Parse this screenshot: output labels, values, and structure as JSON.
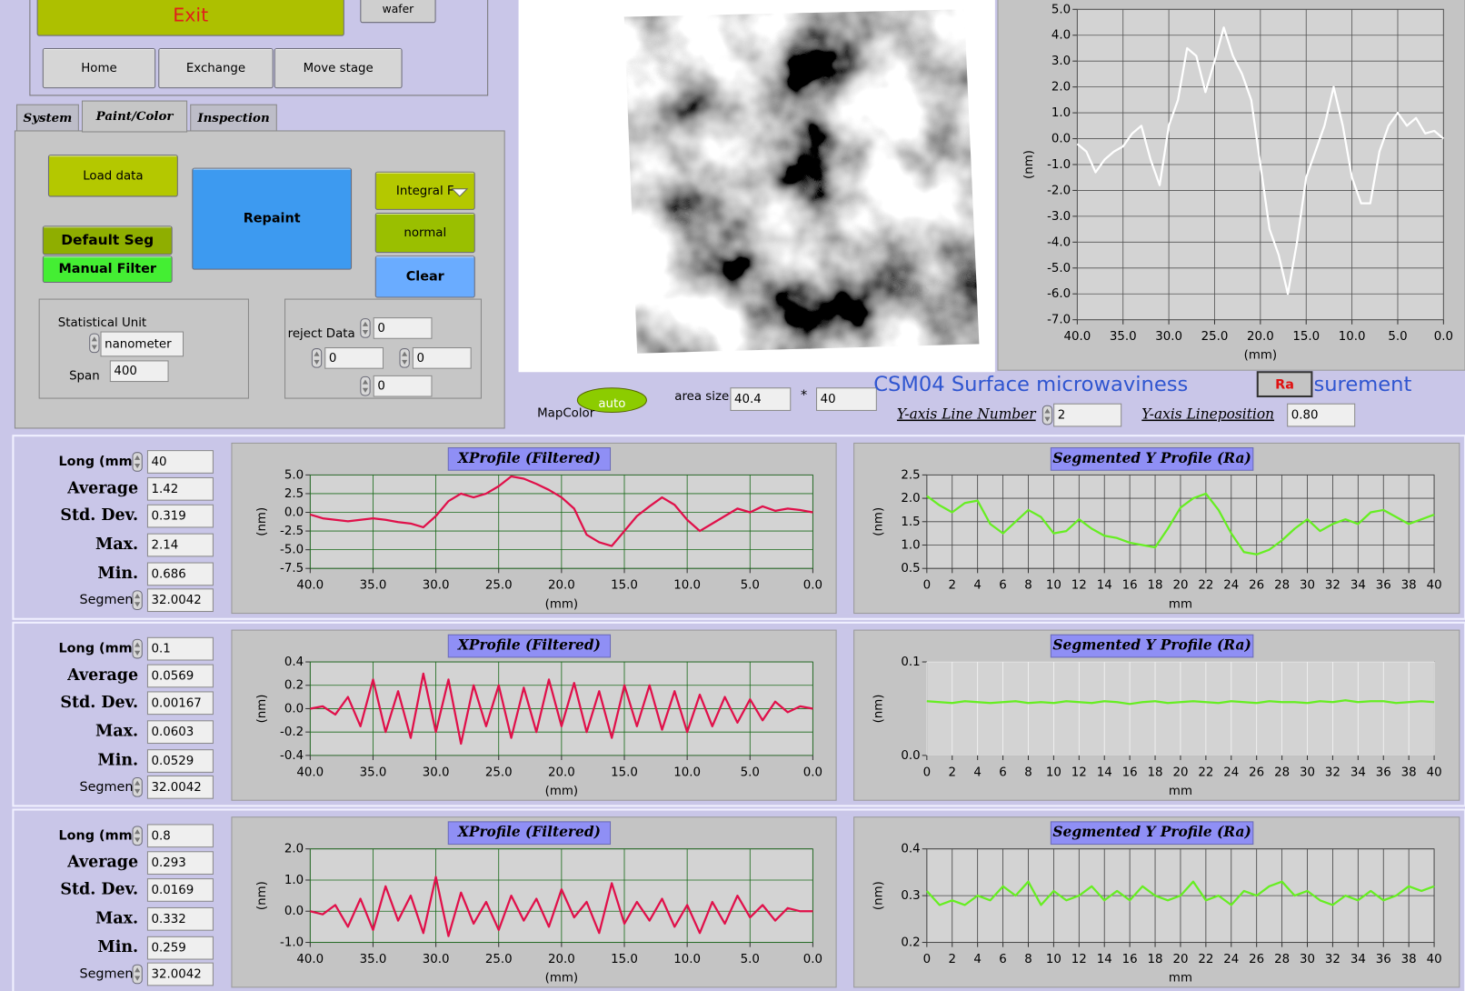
{
  "ui": {
    "exit": "Exit",
    "wafer": "wafer",
    "home": "Home",
    "exchange": "Exchange",
    "move_stage": "Move stage",
    "tabs": [
      "System",
      "Paint/Color",
      "Inspection"
    ],
    "load_data": "Load data",
    "repaint": "Repaint",
    "integral": "Integral F",
    "normal": "normal",
    "clear": "Clear",
    "default_seg": "Default Seg",
    "manual_filter": "Manual Filter",
    "statistical_unit": "Statistical Unit",
    "unit_value": "nanometer",
    "span_label": "Span",
    "span_value": "400",
    "reject_data": "reject Data",
    "reject_values": [
      "0",
      "0",
      "0",
      "0"
    ],
    "map_color": "MapColor",
    "auto": "auto",
    "area_size": "area size",
    "area_x": "40.4",
    "area_sep": "*",
    "area_y": "40",
    "title": "CSM04 Surface microwaviness",
    "ra": "Ra",
    "title_tail": "surement",
    "y_line_number_label": "Y-axis Line Number",
    "y_line_number": "2",
    "y_lineposition_label": "Y-axis Lineposition",
    "y_lineposition": "0.80"
  },
  "rows": [
    {
      "long_label": "Long (mm)",
      "long": "40",
      "average_label": "Average",
      "average": "1.42",
      "std_label": "Std. Dev.",
      "std": "0.319",
      "max_label": "Max.",
      "max": "2.14",
      "min_label": "Min.",
      "min": "0.686",
      "segment_label": "Segment",
      "segment": "32.0042"
    },
    {
      "long_label": "Long (mm)",
      "long": "0.1",
      "average_label": "Average",
      "average": "0.0569",
      "std_label": "Std. Dev.",
      "std": "0.00167",
      "max_label": "Max.",
      "max": "0.0603",
      "min_label": "Min.",
      "min": "0.0529",
      "segment_label": "Segment",
      "segment": "32.0042"
    },
    {
      "long_label": "Long (mm)",
      "long": "0.8",
      "average_label": "Average",
      "average": "0.293",
      "std_label": "Std. Dev.",
      "std": "0.0169",
      "max_label": "Max.",
      "max": "0.332",
      "min_label": "Min.",
      "min": "0.259",
      "segment_label": "Segment",
      "segment": "32.0042"
    }
  ],
  "chart_data": [
    {
      "type": "line",
      "x_label": "(mm)",
      "y_label": "(nm)",
      "color": "#ffffff",
      "grid": true,
      "grid_color": "#555555",
      "x": [
        40,
        39,
        38,
        37,
        36,
        35,
        34,
        33,
        32,
        31,
        30,
        29,
        28,
        27,
        26,
        25,
        24,
        23,
        22,
        21,
        20,
        19,
        18,
        17,
        16,
        15,
        14,
        13,
        12,
        11,
        10,
        9,
        8,
        7,
        6,
        5,
        4,
        3,
        2,
        1,
        0
      ],
      "values": [
        -0.2,
        -0.5,
        -1.3,
        -0.8,
        -0.5,
        -0.3,
        0.2,
        0.5,
        -0.8,
        -1.8,
        0.5,
        1.5,
        3.5,
        3.2,
        1.8,
        3.0,
        4.3,
        3.2,
        2.5,
        1.5,
        -1.0,
        -3.5,
        -4.5,
        -6.0,
        -4.0,
        -1.5,
        -0.5,
        0.5,
        2.0,
        0.5,
        -1.5,
        -2.5,
        -2.5,
        -0.5,
        0.5,
        1.0,
        0.5,
        0.8,
        0.2,
        0.3,
        0.0
      ],
      "xlim": [
        40,
        0
      ],
      "xticks": [
        {
          "value": 40,
          "label": "40.0"
        },
        {
          "value": 35,
          "label": "35.0"
        },
        {
          "value": 30,
          "label": "30.0"
        },
        {
          "value": 25,
          "label": "25.0"
        },
        {
          "value": 20,
          "label": "20.0"
        },
        {
          "value": 15,
          "label": "15.0"
        },
        {
          "value": 10,
          "label": "10.0"
        },
        {
          "value": 5,
          "label": "5.0"
        },
        {
          "value": 0,
          "label": "0.0"
        }
      ],
      "ylim": [
        -7,
        5
      ],
      "yticks": [
        {
          "value": 5,
          "label": "5.0"
        },
        {
          "value": 4,
          "label": "4.0"
        },
        {
          "value": 3,
          "label": "3.0"
        },
        {
          "value": 2,
          "label": "2.0"
        },
        {
          "value": 1,
          "label": "1.0"
        },
        {
          "value": 0,
          "label": "0.0"
        },
        {
          "value": -1,
          "label": "-1.0"
        },
        {
          "value": -2,
          "label": "-2.0"
        },
        {
          "value": -3,
          "label": "-3.0"
        },
        {
          "value": -4,
          "label": "-4.0"
        },
        {
          "value": -5,
          "label": "-5.0"
        },
        {
          "value": -6,
          "label": "-6.0"
        },
        {
          "value": -7,
          "label": "-7.0"
        }
      ]
    },
    {
      "type": "line",
      "title": "XProfile (Filtered)",
      "x_label": "(mm)",
      "y_label": "(nm)",
      "color": "#e0104a",
      "grid": true,
      "grid_color": "#1a6a1a",
      "x": [
        40,
        39,
        38,
        37,
        36,
        35,
        34,
        33,
        32,
        31,
        30,
        29,
        28,
        27,
        26,
        25,
        24,
        23,
        22,
        21,
        20,
        19,
        18,
        17,
        16,
        15,
        14,
        13,
        12,
        11,
        10,
        9,
        8,
        7,
        6,
        5,
        4,
        3,
        2,
        1,
        0
      ],
      "values": [
        -0.3,
        -0.8,
        -1.0,
        -1.2,
        -1.0,
        -0.8,
        -1.0,
        -1.3,
        -1.5,
        -2.0,
        -0.5,
        1.5,
        2.5,
        2.0,
        2.5,
        3.5,
        4.8,
        4.5,
        3.8,
        3.0,
        2.0,
        0.5,
        -3.0,
        -4.0,
        -4.5,
        -2.5,
        -0.5,
        0.8,
        2.0,
        1.0,
        -1.0,
        -2.5,
        -1.5,
        -0.5,
        0.5,
        0.0,
        0.8,
        0.2,
        0.5,
        0.3,
        0.0
      ],
      "xlim": [
        40,
        0
      ],
      "xticks": [
        {
          "value": 40,
          "label": "40.0"
        },
        {
          "value": 35,
          "label": "35.0"
        },
        {
          "value": 30,
          "label": "30.0"
        },
        {
          "value": 25,
          "label": "25.0"
        },
        {
          "value": 20,
          "label": "20.0"
        },
        {
          "value": 15,
          "label": "15.0"
        },
        {
          "value": 10,
          "label": "10.0"
        },
        {
          "value": 5,
          "label": "5.0"
        },
        {
          "value": 0,
          "label": "0.0"
        }
      ],
      "ylim": [
        -7.5,
        5
      ],
      "yticks": [
        {
          "value": 5,
          "label": "5.0"
        },
        2.5,
        {
          "value": 0,
          "label": "0.0"
        },
        -2.5,
        {
          "value": -5,
          "label": "-5.0"
        },
        -7.5
      ]
    },
    {
      "type": "line",
      "title": "XProfile (Filtered)",
      "x_label": "(mm)",
      "y_label": "(nm)",
      "color": "#e0104a",
      "grid": true,
      "grid_color": "#1a6a1a",
      "x": [
        40,
        39,
        38,
        37,
        36,
        35,
        34,
        33,
        32,
        31,
        30,
        29,
        28,
        27,
        26,
        25,
        24,
        23,
        22,
        21,
        20,
        19,
        18,
        17,
        16,
        15,
        14,
        13,
        12,
        11,
        10,
        9,
        8,
        7,
        6,
        5,
        4,
        3,
        2,
        1,
        0
      ],
      "values": [
        0.0,
        0.02,
        -0.05,
        0.1,
        -0.15,
        0.25,
        -0.2,
        0.15,
        -0.25,
        0.3,
        -0.2,
        0.25,
        -0.3,
        0.2,
        -0.15,
        0.2,
        -0.25,
        0.18,
        -0.2,
        0.25,
        -0.15,
        0.22,
        -0.2,
        0.15,
        -0.25,
        0.2,
        -0.15,
        0.2,
        -0.18,
        0.15,
        -0.2,
        0.12,
        -0.15,
        0.1,
        -0.12,
        0.08,
        -0.1,
        0.06,
        -0.03,
        0.02,
        0.0
      ],
      "xlim": [
        40,
        0
      ],
      "xticks": [
        {
          "value": 40,
          "label": "40.0"
        },
        {
          "value": 35,
          "label": "35.0"
        },
        {
          "value": 30,
          "label": "30.0"
        },
        {
          "value": 25,
          "label": "25.0"
        },
        {
          "value": 20,
          "label": "20.0"
        },
        {
          "value": 15,
          "label": "15.0"
        },
        {
          "value": 10,
          "label": "10.0"
        },
        {
          "value": 5,
          "label": "5.0"
        },
        {
          "value": 0,
          "label": "0.0"
        }
      ],
      "ylim": [
        -0.4,
        0.4
      ],
      "yticks": [
        0.4,
        0.2,
        {
          "value": 0,
          "label": "0.0"
        },
        -0.2,
        -0.4
      ]
    },
    {
      "type": "line",
      "title": "XProfile (Filtered)",
      "x_label": "(mm)",
      "y_label": "(nm)",
      "color": "#e0104a",
      "grid": true,
      "grid_color": "#1a6a1a",
      "x": [
        40,
        39,
        38,
        37,
        36,
        35,
        34,
        33,
        32,
        31,
        30,
        29,
        28,
        27,
        26,
        25,
        24,
        23,
        22,
        21,
        20,
        19,
        18,
        17,
        16,
        15,
        14,
        13,
        12,
        11,
        10,
        9,
        8,
        7,
        6,
        5,
        4,
        3,
        2,
        1,
        0
      ],
      "values": [
        0.0,
        -0.1,
        0.2,
        -0.5,
        0.4,
        -0.6,
        0.8,
        -0.3,
        0.5,
        -0.7,
        1.1,
        -0.8,
        0.6,
        -0.4,
        0.3,
        -0.6,
        0.5,
        -0.3,
        0.4,
        -0.5,
        0.7,
        -0.2,
        0.3,
        -0.7,
        0.9,
        -0.4,
        0.3,
        -0.3,
        0.4,
        -0.5,
        0.2,
        -0.7,
        0.3,
        -0.4,
        0.5,
        -0.2,
        0.2,
        -0.3,
        0.1,
        0.0,
        0.0
      ],
      "xlim": [
        40,
        0
      ],
      "xticks": [
        {
          "value": 40,
          "label": "40.0"
        },
        {
          "value": 35,
          "label": "35.0"
        },
        {
          "value": 30,
          "label": "30.0"
        },
        {
          "value": 25,
          "label": "25.0"
        },
        {
          "value": 20,
          "label": "20.0"
        },
        {
          "value": 15,
          "label": "15.0"
        },
        {
          "value": 10,
          "label": "10.0"
        },
        {
          "value": 5,
          "label": "5.0"
        },
        {
          "value": 0,
          "label": "0.0"
        }
      ],
      "ylim": [
        -1,
        2
      ],
      "yticks": [
        {
          "value": 2,
          "label": "2.0"
        },
        {
          "value": 1,
          "label": "1.0"
        },
        {
          "value": 0,
          "label": "0.0"
        },
        {
          "value": -1,
          "label": "-1.0"
        }
      ]
    },
    {
      "type": "line",
      "title": "Segmented Y Profile (Ra)",
      "x_label": "mm",
      "y_label": "(nm)",
      "color": "#66ee22",
      "grid": true,
      "grid_color": "#444444",
      "x": [
        0,
        1,
        2,
        3,
        4,
        5,
        6,
        7,
        8,
        9,
        10,
        11,
        12,
        13,
        14,
        15,
        16,
        17,
        18,
        19,
        20,
        21,
        22,
        23,
        24,
        25,
        26,
        27,
        28,
        29,
        30,
        31,
        32,
        33,
        34,
        35,
        36,
        37,
        38,
        39,
        40
      ],
      "values": [
        2.05,
        1.85,
        1.7,
        1.9,
        1.95,
        1.45,
        1.25,
        1.5,
        1.75,
        1.6,
        1.25,
        1.3,
        1.55,
        1.35,
        1.2,
        1.15,
        1.05,
        1.0,
        0.95,
        1.35,
        1.8,
        2.0,
        2.1,
        1.75,
        1.25,
        0.85,
        0.8,
        0.9,
        1.1,
        1.35,
        1.55,
        1.3,
        1.45,
        1.55,
        1.45,
        1.7,
        1.75,
        1.6,
        1.45,
        1.55,
        1.65
      ],
      "xlim": [
        0,
        40
      ],
      "xticks": [
        0,
        2,
        4,
        6,
        8,
        10,
        12,
        14,
        16,
        18,
        20,
        22,
        24,
        26,
        28,
        30,
        32,
        34,
        36,
        38,
        40
      ],
      "ylim": [
        0.5,
        2.5
      ],
      "yticks": [
        2.5,
        {
          "value": 2,
          "label": "2.0"
        },
        1.5,
        {
          "value": 1,
          "label": "1.0"
        },
        0.5
      ]
    },
    {
      "type": "line",
      "title": "Segmented Y Profile (Ra)",
      "x_label": "mm",
      "y_label": "(nm)",
      "color": "#66ee22",
      "grid": true,
      "grid_color": "#f4f4f4",
      "x": [
        0,
        1,
        2,
        3,
        4,
        5,
        6,
        7,
        8,
        9,
        10,
        11,
        12,
        13,
        14,
        15,
        16,
        17,
        18,
        19,
        20,
        21,
        22,
        23,
        24,
        25,
        26,
        27,
        28,
        29,
        30,
        31,
        32,
        33,
        34,
        35,
        36,
        37,
        38,
        39,
        40
      ],
      "values": [
        0.058,
        0.057,
        0.056,
        0.058,
        0.057,
        0.056,
        0.057,
        0.058,
        0.056,
        0.057,
        0.056,
        0.058,
        0.057,
        0.056,
        0.058,
        0.057,
        0.055,
        0.057,
        0.058,
        0.056,
        0.057,
        0.058,
        0.057,
        0.056,
        0.058,
        0.057,
        0.056,
        0.058,
        0.057,
        0.057,
        0.056,
        0.058,
        0.057,
        0.059,
        0.057,
        0.058,
        0.058,
        0.056,
        0.057,
        0.058,
        0.057
      ],
      "xlim": [
        0,
        40
      ],
      "xticks": [
        0,
        2,
        4,
        6,
        8,
        10,
        12,
        14,
        16,
        18,
        20,
        22,
        24,
        26,
        28,
        30,
        32,
        34,
        36,
        38,
        40
      ],
      "ylim": [
        0,
        0.1
      ],
      "yticks": [
        0.1,
        {
          "value": 0,
          "label": "0.0"
        }
      ]
    },
    {
      "type": "line",
      "title": "Segmented Y Profile (Ra)",
      "x_label": "mm",
      "y_label": "(nm)",
      "color": "#66ee22",
      "grid": true,
      "grid_color": "#444444",
      "x": [
        0,
        1,
        2,
        3,
        4,
        5,
        6,
        7,
        8,
        9,
        10,
        11,
        12,
        13,
        14,
        15,
        16,
        17,
        18,
        19,
        20,
        21,
        22,
        23,
        24,
        25,
        26,
        27,
        28,
        29,
        30,
        31,
        32,
        33,
        34,
        35,
        36,
        37,
        38,
        39,
        40
      ],
      "values": [
        0.31,
        0.28,
        0.29,
        0.28,
        0.3,
        0.29,
        0.32,
        0.3,
        0.33,
        0.28,
        0.31,
        0.29,
        0.3,
        0.32,
        0.29,
        0.31,
        0.29,
        0.32,
        0.3,
        0.29,
        0.3,
        0.33,
        0.29,
        0.3,
        0.28,
        0.31,
        0.3,
        0.32,
        0.33,
        0.3,
        0.31,
        0.29,
        0.28,
        0.3,
        0.29,
        0.31,
        0.29,
        0.3,
        0.32,
        0.31,
        0.32
      ],
      "xlim": [
        0,
        40
      ],
      "xticks": [
        0,
        2,
        4,
        6,
        8,
        10,
        12,
        14,
        16,
        18,
        20,
        22,
        24,
        26,
        28,
        30,
        32,
        34,
        36,
        38,
        40
      ],
      "ylim": [
        0.2,
        0.4
      ],
      "yticks": [
        0.4,
        0.3,
        0.2
      ]
    }
  ]
}
